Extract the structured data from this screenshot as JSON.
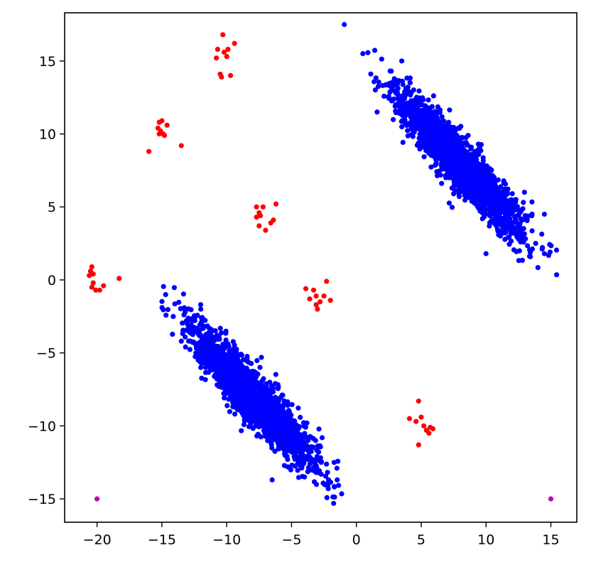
{
  "chart_data": {
    "type": "scatter",
    "title": "",
    "xlabel": "",
    "ylabel": "",
    "xlim": [
      -22.5,
      17.0
    ],
    "ylim": [
      -16.6,
      18.3
    ],
    "xticks": [
      -20,
      -15,
      -10,
      -5,
      0,
      5,
      10,
      15
    ],
    "yticks": [
      -15,
      -10,
      -5,
      0,
      5,
      10,
      15
    ],
    "xtick_labels": [
      "−20",
      "−15",
      "−10",
      "−5",
      "0",
      "5",
      "10",
      "15"
    ],
    "ytick_labels": [
      "−15",
      "−10",
      "−5",
      "0",
      "5",
      "10",
      "15"
    ],
    "grid": false,
    "legend": "none",
    "series": [
      {
        "color": "#0000ff",
        "clusters": [
          {
            "center": [
              8.0,
              8.0
            ],
            "covariance": [
              [
                5.0,
                -4.6
              ],
              [
                -4.6,
                5.0
              ]
            ],
            "count": 2500,
            "extremes": [
              [
                0.5,
                15.5
              ],
              [
                3.5,
                15.0
              ],
              [
                14.5,
                1.8
              ],
              [
                10.0,
                1.8
              ],
              [
                14.5,
                4.5
              ],
              [
                1.6,
                11.5
              ]
            ]
          },
          {
            "center": [
              -8.0,
              -8.0
            ],
            "covariance": [
              [
                5.0,
                -4.6
              ],
              [
                -4.6,
                5.0
              ]
            ],
            "count": 2500,
            "extremes": [
              [
                -13.5,
                -4.2
              ],
              [
                -12.0,
                -2.0
              ],
              [
                -1.5,
                -12.9
              ],
              [
                -6.5,
                -13.7
              ],
              [
                -4.0,
                -13.5
              ],
              [
                -12.0,
                -6.0
              ]
            ]
          }
        ]
      },
      {
        "color": "#ff0000",
        "points": [
          [
            -10.3,
            16.8
          ],
          [
            -9.4,
            16.2
          ],
          [
            -10.7,
            15.8
          ],
          [
            -10.2,
            15.6
          ],
          [
            -9.9,
            15.8
          ],
          [
            -10.8,
            15.2
          ],
          [
            -10.0,
            15.3
          ],
          [
            -10.5,
            14.1
          ],
          [
            -10.4,
            13.9
          ],
          [
            -9.7,
            14.0
          ],
          [
            -15.2,
            10.8
          ],
          [
            -15.0,
            10.9
          ],
          [
            -14.6,
            10.6
          ],
          [
            -15.3,
            10.4
          ],
          [
            -15.1,
            10.2
          ],
          [
            -15.2,
            10.0
          ],
          [
            -14.9,
            10.0
          ],
          [
            -16.0,
            8.8
          ],
          [
            -13.5,
            9.2
          ],
          [
            -14.8,
            9.9
          ],
          [
            -7.7,
            5.0
          ],
          [
            -7.2,
            5.0
          ],
          [
            -6.2,
            5.2
          ],
          [
            -7.5,
            4.6
          ],
          [
            -7.4,
            4.4
          ],
          [
            -7.7,
            4.3
          ],
          [
            -6.4,
            4.1
          ],
          [
            -7.5,
            3.7
          ],
          [
            -7.0,
            3.4
          ],
          [
            -6.6,
            3.9
          ],
          [
            -20.4,
            0.9
          ],
          [
            -20.5,
            0.6
          ],
          [
            -20.3,
            0.4
          ],
          [
            -20.6,
            0.3
          ],
          [
            -20.3,
            -0.2
          ],
          [
            -20.4,
            -0.5
          ],
          [
            -20.1,
            -0.7
          ],
          [
            -19.8,
            -0.7
          ],
          [
            -19.5,
            -0.4
          ],
          [
            -18.3,
            0.1
          ],
          [
            -2.3,
            -0.1
          ],
          [
            -3.9,
            -0.6
          ],
          [
            -3.3,
            -0.7
          ],
          [
            -3.6,
            -1.3
          ],
          [
            -3.1,
            -1.1
          ],
          [
            -2.5,
            -1.1
          ],
          [
            -2.8,
            -1.5
          ],
          [
            -3.1,
            -1.7
          ],
          [
            -2.0,
            -1.4
          ],
          [
            -3.0,
            -2.0
          ],
          [
            4.8,
            -8.3
          ],
          [
            4.1,
            -9.5
          ],
          [
            5.0,
            -9.4
          ],
          [
            4.6,
            -9.7
          ],
          [
            5.2,
            -10.0
          ],
          [
            5.7,
            -10.1
          ],
          [
            5.4,
            -10.3
          ],
          [
            5.6,
            -10.5
          ],
          [
            4.8,
            -11.3
          ],
          [
            5.9,
            -10.2
          ]
        ]
      },
      {
        "color": "#bf00bf",
        "points": [
          [
            -20.0,
            -15.0
          ],
          [
            15.0,
            -15.0
          ]
        ]
      }
    ]
  }
}
